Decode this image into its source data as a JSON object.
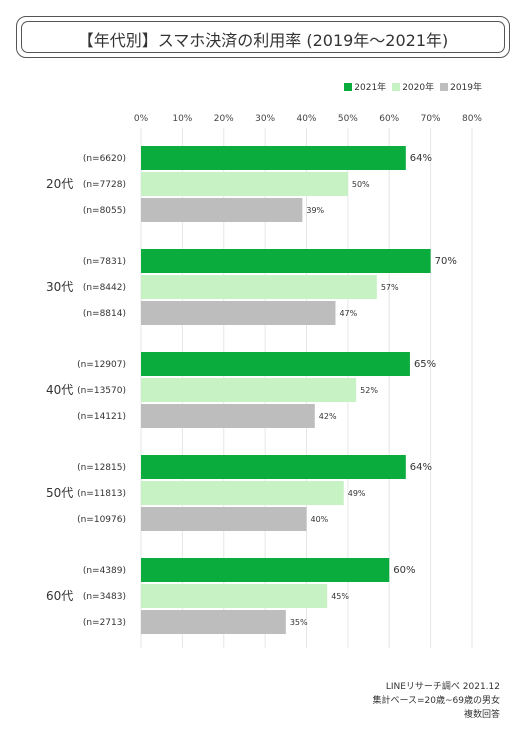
{
  "title": "【年代別】スマホ決済の利用率 (2019年～2021年)",
  "legend": [
    {
      "label": "2021年",
      "color": "#0aac3e"
    },
    {
      "label": "2020年",
      "color": "#c6f2c4"
    },
    {
      "label": "2019年",
      "color": "#bdbdbd"
    }
  ],
  "footer": {
    "line1": "LINEリサーチ調べ 2021.12",
    "line2": "集計ベース=20歳~69歳の男女",
    "line3": "複数回答"
  },
  "chart_data": {
    "type": "bar",
    "orientation": "horizontal",
    "title": "【年代別】スマホ決済の利用率 (2019年～2021年)",
    "xlim": [
      0,
      80
    ],
    "x_ticks": [
      "0%",
      "10%",
      "20%",
      "30%",
      "40%",
      "50%",
      "60%",
      "70%",
      "80%"
    ],
    "grid": true,
    "legend_position": "top-right",
    "categories": [
      "20代",
      "30代",
      "40代",
      "50代",
      "60代"
    ],
    "series": [
      {
        "name": "2021年",
        "color": "#0aac3e",
        "values": [
          64,
          70,
          65,
          64,
          60
        ],
        "n": [
          "(n=6620)",
          "(n=7831)",
          "(n=12907)",
          "(n=12815)",
          "(n=4389)"
        ]
      },
      {
        "name": "2020年",
        "color": "#c6f2c4",
        "values": [
          50,
          57,
          52,
          49,
          45
        ],
        "n": [
          "(n=7728)",
          "(n=8442)",
          "(n=13570)",
          "(n=11813)",
          "(n=3483)"
        ]
      },
      {
        "name": "2019年",
        "color": "#bdbdbd",
        "values": [
          39,
          47,
          42,
          40,
          35
        ],
        "n": [
          "(n=8055)",
          "(n=8814)",
          "(n=14121)",
          "(n=10976)",
          "(n=2713)"
        ]
      }
    ]
  }
}
